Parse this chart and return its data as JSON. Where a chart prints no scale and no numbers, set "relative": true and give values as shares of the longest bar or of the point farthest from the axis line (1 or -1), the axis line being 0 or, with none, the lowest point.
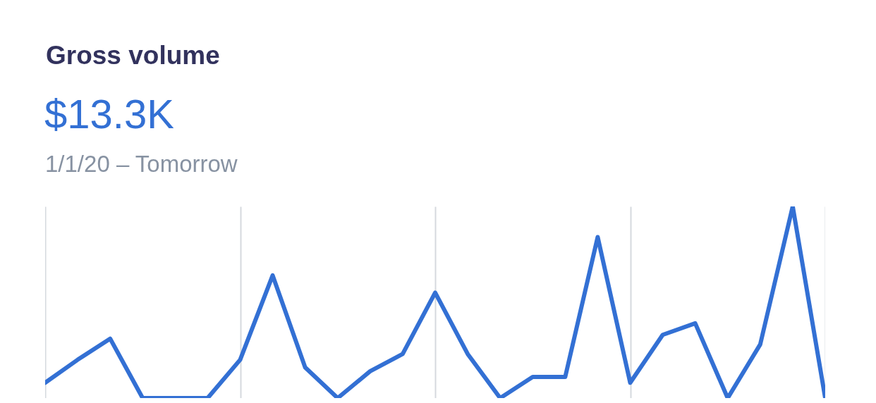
{
  "chart_data": {
    "type": "line",
    "title": "Gross volume",
    "subtitle": "$13.3K",
    "annotations": [
      "1/1/20 – Tomorrow"
    ],
    "relative": true,
    "categories": [
      null,
      null,
      null,
      null,
      null,
      null,
      null,
      null,
      null,
      null,
      null,
      null,
      null,
      null,
      null,
      null,
      null,
      null,
      null,
      null,
      null,
      null,
      null,
      null,
      null
    ],
    "grid": "x",
    "series": [
      {
        "color": "#3370d4",
        "values": [
          0.08,
          0.2,
          0.31,
          0,
          0,
          0,
          0.2,
          0.64,
          0.16,
          0,
          0.14,
          0.23,
          0.55,
          0.23,
          0,
          0.11,
          0.11,
          0.84,
          0.08,
          0.33,
          0.39,
          0,
          0.28,
          1,
          0
        ]
      }
    ]
  }
}
